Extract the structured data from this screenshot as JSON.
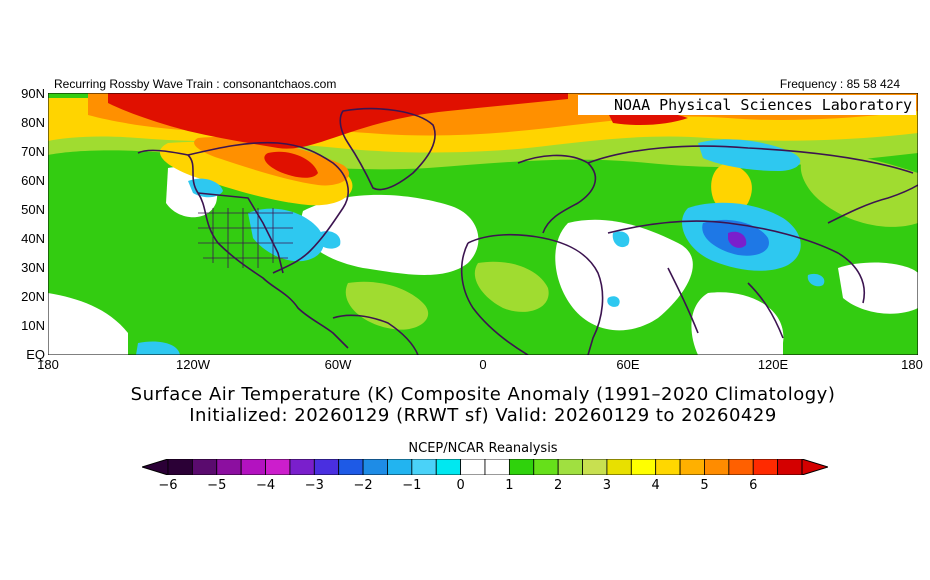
{
  "header": {
    "left": "Recurring Rossby Wave Train : consonantchaos.com",
    "right": "Frequency : 85 58 424"
  },
  "map": {
    "overlay_label": "NOAA Physical Sciences Laboratory",
    "lat_labels": [
      "90N",
      "80N",
      "70N",
      "60N",
      "50N",
      "40N",
      "30N",
      "20N",
      "10N",
      "EQ"
    ],
    "lon_labels": [
      "180",
      "120W",
      "60W",
      "0",
      "60E",
      "120E",
      "180"
    ]
  },
  "titles": {
    "line1": "Surface Air Temperature (K) Composite Anomaly (1991–2020 Climatology)",
    "line2": "Initialized: 20260129 (RRWT sf) Valid: 20260129 to 20260429"
  },
  "colorbar": {
    "label": "NCEP/NCAR Reanalysis",
    "ticks": [
      "−6",
      "−5",
      "−4",
      "−3",
      "−2",
      "−1",
      "0",
      "1",
      "2",
      "3",
      "4",
      "5",
      "6"
    ],
    "colors": [
      "#2b0036",
      "#5a0b6e",
      "#8c0fa0",
      "#b312c0",
      "#cc1ecc",
      "#7a1fcc",
      "#4a2fe0",
      "#1e5ae6",
      "#1e8ce6",
      "#22b4f0",
      "#4ad2f8",
      "#00e8f0",
      "#ffffff",
      "#ffffff",
      "#2fd20c",
      "#66e01a",
      "#a0e040",
      "#c8e050",
      "#e8e000",
      "#ffff00",
      "#ffd700",
      "#ffb000",
      "#ff8c00",
      "#ff6000",
      "#ff2a00",
      "#d40000"
    ],
    "under_color": "#2b0036",
    "over_color": "#d40000"
  },
  "anomaly_colors": {
    "strong_warm": "#e01000",
    "warm": "#ff8c00",
    "mild_warm": "#ffd400",
    "slight_warm": "#c8e034",
    "weak_warm": "#33cc11",
    "neutral": "#ffffff",
    "weak_cold": "#2ec8f0",
    "cold": "#1e78e6",
    "strong_cold": "#7a1fcc",
    "coastline": "#3c1450"
  }
}
